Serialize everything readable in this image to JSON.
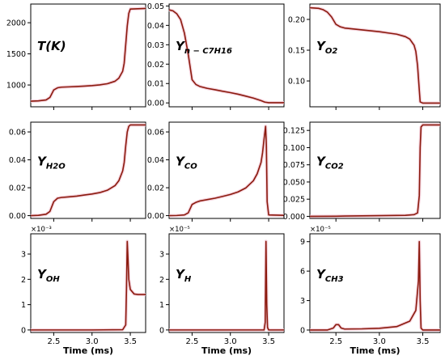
{
  "figure": {
    "xlabel": "Time (ms)",
    "curve_color": "#8b1a0e",
    "shadow_color": "#f3c9d6",
    "x_ticks": [
      2.5,
      3.0,
      3.5
    ],
    "xlim": [
      2.2,
      3.7
    ]
  },
  "chart_data": [
    {
      "type": "line",
      "label_main": "T(K)",
      "label_sub": "",
      "ylim": [
        650,
        2300
      ],
      "y_ticks": [
        1000,
        1500,
        2000
      ],
      "y_tick_labels": [
        "1000",
        "1500",
        "2000"
      ],
      "multiplier": "",
      "x": [
        2.2,
        2.3,
        2.4,
        2.45,
        2.5,
        2.55,
        2.6,
        2.7,
        2.8,
        2.9,
        3.0,
        3.1,
        3.2,
        3.3,
        3.35,
        3.4,
        3.42,
        3.44,
        3.46,
        3.48,
        3.5,
        3.7
      ],
      "y": [
        740,
        745,
        760,
        800,
        920,
        955,
        965,
        970,
        975,
        982,
        990,
        1002,
        1020,
        1060,
        1110,
        1220,
        1350,
        1650,
        1950,
        2150,
        2220,
        2230
      ]
    },
    {
      "type": "line",
      "label_main": "Y",
      "label_sub": "n − C7H16",
      "ylim": [
        -0.002,
        0.051
      ],
      "y_ticks": [
        0,
        0.01,
        0.02,
        0.03,
        0.04,
        0.05
      ],
      "y_tick_labels": [
        "0.00",
        "0.01",
        "0.02",
        "0.03",
        "0.04",
        "0.05"
      ],
      "multiplier": "",
      "x": [
        2.2,
        2.25,
        2.3,
        2.35,
        2.4,
        2.45,
        2.5,
        2.55,
        2.6,
        2.7,
        2.8,
        2.9,
        3.0,
        3.1,
        3.2,
        3.3,
        3.4,
        3.45,
        3.5,
        3.7
      ],
      "y": [
        0.048,
        0.0475,
        0.046,
        0.043,
        0.036,
        0.025,
        0.012,
        0.0095,
        0.0085,
        0.0075,
        0.0068,
        0.006,
        0.0053,
        0.0045,
        0.0035,
        0.0025,
        0.0012,
        0.0004,
        0.0001,
        0.0001
      ]
    },
    {
      "type": "line",
      "label_main": "Y",
      "label_sub": "O2",
      "ylim": [
        0.058,
        0.225
      ],
      "y_ticks": [
        0.1,
        0.15,
        0.2
      ],
      "y_tick_labels": [
        "0.10",
        "0.15",
        "0.20"
      ],
      "multiplier": "",
      "x": [
        2.2,
        2.3,
        2.35,
        2.4,
        2.45,
        2.5,
        2.55,
        2.6,
        2.8,
        3.0,
        3.1,
        3.2,
        3.3,
        3.35,
        3.4,
        3.42,
        3.44,
        3.46,
        3.47,
        3.5,
        3.7
      ],
      "y": [
        0.219,
        0.218,
        0.216,
        0.212,
        0.204,
        0.192,
        0.188,
        0.186,
        0.183,
        0.18,
        0.178,
        0.176,
        0.172,
        0.168,
        0.158,
        0.148,
        0.125,
        0.085,
        0.066,
        0.064,
        0.064
      ]
    },
    {
      "type": "line",
      "label_main": "Y",
      "label_sub": "H2O",
      "ylim": [
        -0.002,
        0.067
      ],
      "y_ticks": [
        0,
        0.02,
        0.04,
        0.06
      ],
      "y_tick_labels": [
        "0.00",
        "0.02",
        "0.04",
        "0.06"
      ],
      "multiplier": "",
      "x": [
        2.2,
        2.3,
        2.4,
        2.45,
        2.5,
        2.55,
        2.6,
        2.7,
        2.8,
        2.9,
        3.0,
        3.1,
        3.2,
        3.3,
        3.35,
        3.4,
        3.42,
        3.44,
        3.46,
        3.48,
        3.5,
        3.7
      ],
      "y": [
        0.0,
        0.0002,
        0.001,
        0.003,
        0.01,
        0.0125,
        0.013,
        0.0135,
        0.014,
        0.0148,
        0.0155,
        0.0165,
        0.0182,
        0.0215,
        0.025,
        0.032,
        0.038,
        0.05,
        0.06,
        0.064,
        0.065,
        0.065
      ]
    },
    {
      "type": "line",
      "label_main": "Y",
      "label_sub": "CO",
      "ylim": [
        -0.002,
        0.067
      ],
      "y_ticks": [
        0,
        0.02,
        0.04,
        0.06
      ],
      "y_tick_labels": [
        "0.00",
        "0.02",
        "0.04",
        "0.06"
      ],
      "multiplier": "",
      "x": [
        2.2,
        2.3,
        2.4,
        2.45,
        2.5,
        2.55,
        2.6,
        2.7,
        2.8,
        2.9,
        3.0,
        3.1,
        3.2,
        3.3,
        3.35,
        3.4,
        3.42,
        3.44,
        3.46,
        3.47,
        3.48,
        3.5,
        3.7
      ],
      "y": [
        0.0,
        0.0001,
        0.0005,
        0.002,
        0.008,
        0.0095,
        0.0105,
        0.0115,
        0.0125,
        0.0138,
        0.0152,
        0.017,
        0.0198,
        0.025,
        0.03,
        0.038,
        0.045,
        0.055,
        0.064,
        0.05,
        0.01,
        0.0005,
        0.0002
      ]
    },
    {
      "type": "line",
      "label_main": "Y",
      "label_sub": "CO2",
      "ylim": [
        -0.003,
        0.137
      ],
      "y_ticks": [
        0,
        0.025,
        0.05,
        0.075,
        0.1,
        0.125
      ],
      "y_tick_labels": [
        "0.000",
        "0.025",
        "0.050",
        "0.075",
        "0.100",
        "0.125"
      ],
      "multiplier": "",
      "x": [
        2.2,
        2.5,
        2.6,
        3.0,
        3.3,
        3.4,
        3.44,
        3.46,
        3.47,
        3.48,
        3.5,
        3.7
      ],
      "y": [
        0.0,
        0.0002,
        0.0005,
        0.001,
        0.0015,
        0.0025,
        0.005,
        0.03,
        0.1,
        0.13,
        0.133,
        0.133
      ]
    },
    {
      "type": "line",
      "label_main": "Y",
      "label_sub": "OH",
      "ylim": [
        -0.0001,
        0.0038
      ],
      "y_ticks": [
        0,
        0.001,
        0.002,
        0.003
      ],
      "y_tick_labels": [
        "0",
        "1",
        "2",
        "3"
      ],
      "multiplier": "×10⁻³",
      "x": [
        2.2,
        2.5,
        3.0,
        3.4,
        3.44,
        3.45,
        3.46,
        3.47,
        3.48,
        3.5,
        3.55,
        3.6,
        3.7
      ],
      "y": [
        0.0,
        0.0,
        0.0,
        1e-05,
        0.0002,
        0.0016,
        0.0035,
        0.0028,
        0.002,
        0.0016,
        0.00142,
        0.0014,
        0.0014
      ]
    },
    {
      "type": "line",
      "label_main": "Y",
      "label_sub": "H",
      "ylim": [
        -1e-06,
        3.8e-05
      ],
      "y_ticks": [
        0,
        1e-05,
        2e-05,
        3e-05
      ],
      "y_tick_labels": [
        "0",
        "1",
        "2",
        "3"
      ],
      "multiplier": "×10⁻⁵",
      "x": [
        2.2,
        3.0,
        3.44,
        3.455,
        3.465,
        3.475,
        3.485,
        3.5,
        3.7
      ],
      "y": [
        0.0,
        0.0,
        0.0,
        3e-06,
        3.5e-05,
        1e-05,
        1e-06,
        0.0,
        0.0
      ]
    },
    {
      "type": "line",
      "label_main": "Y",
      "label_sub": "CH3",
      "ylim": [
        -2.5e-06,
        9.8e-05
      ],
      "y_ticks": [
        0,
        3e-05,
        6e-05,
        9e-05
      ],
      "y_tick_labels": [
        "0",
        "3",
        "6",
        "9"
      ],
      "multiplier": "×10⁻⁵",
      "x": [
        2.2,
        2.4,
        2.47,
        2.5,
        2.53,
        2.56,
        2.6,
        2.8,
        3.0,
        3.2,
        3.35,
        3.42,
        3.45,
        3.46,
        3.47,
        3.48,
        3.5,
        3.7
      ],
      "y": [
        0.0,
        0.0,
        2e-06,
        5.5e-06,
        5.5e-06,
        2e-06,
        1e-06,
        1.2e-06,
        1.8e-06,
        3.5e-06,
        9e-06,
        2e-05,
        5e-05,
        9e-05,
        3e-05,
        2e-06,
        0.0,
        0.0
      ]
    }
  ]
}
